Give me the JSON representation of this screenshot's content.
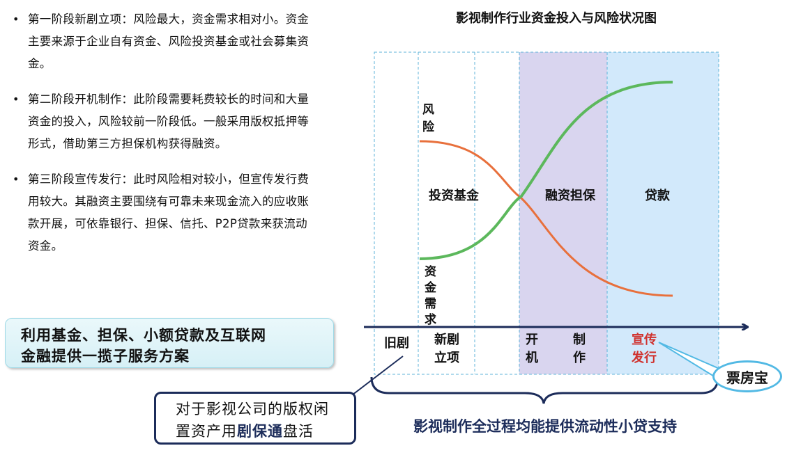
{
  "bullets": [
    "第一阶段新剧立项：风险最大，资金需求相对小。资金主要来源于企业自有资金、风险投资基金或社会募集资金。",
    "第二阶段开机制作：此阶段需要耗费较长的时间和大量资金的投入，风险较前一阶段低。一般采用版权抵押等形式，借助第三方担保机构获得融资。",
    "第三阶段宣传发行：此时风险相对较小，但宣传发行费用较大。其融资主要围绕有可靠未来现金流入的应收账款开展，可依靠银行、担保、信托、P2P贷款来获流动资金。"
  ],
  "solution": {
    "line1": "利用基金、担保、小额贷款及互联网",
    "line2": "金融提供一揽子服务方案"
  },
  "diagram": {
    "title": "影视制作行业资金投入与风险状况图",
    "risk_label": [
      "风",
      "险"
    ],
    "demand_label": [
      "资",
      "金",
      "需",
      "求"
    ],
    "sources": {
      "fund": "投资基金",
      "guarantee": "融资担保",
      "loan": "贷款"
    },
    "stages": {
      "old": "旧剧",
      "new": [
        "新剧",
        "立项"
      ],
      "kai": [
        "开",
        "机"
      ],
      "zhi": [
        "制",
        "作"
      ],
      "xuan": [
        "宣传",
        "发行"
      ]
    },
    "support_text": "影视制作全过程均能提供流动性小贷支持",
    "colors": {
      "risk_curve": "#e8703c",
      "demand_curve": "#5cb85c",
      "axis": "#1c2c5a",
      "production_band": "#d9d5ef",
      "release_band": "#d2e9fb",
      "highlight_text": "#d0312d",
      "callout_border": "#1c2c5a",
      "bubble_border": "#52b9e4"
    }
  },
  "callout": {
    "line1": "对于影视公司的版权闲",
    "line2_prefix": "置资产用",
    "line2_highlight": "剧保通",
    "line2_suffix": "盘活"
  },
  "bubble": "票房宝"
}
